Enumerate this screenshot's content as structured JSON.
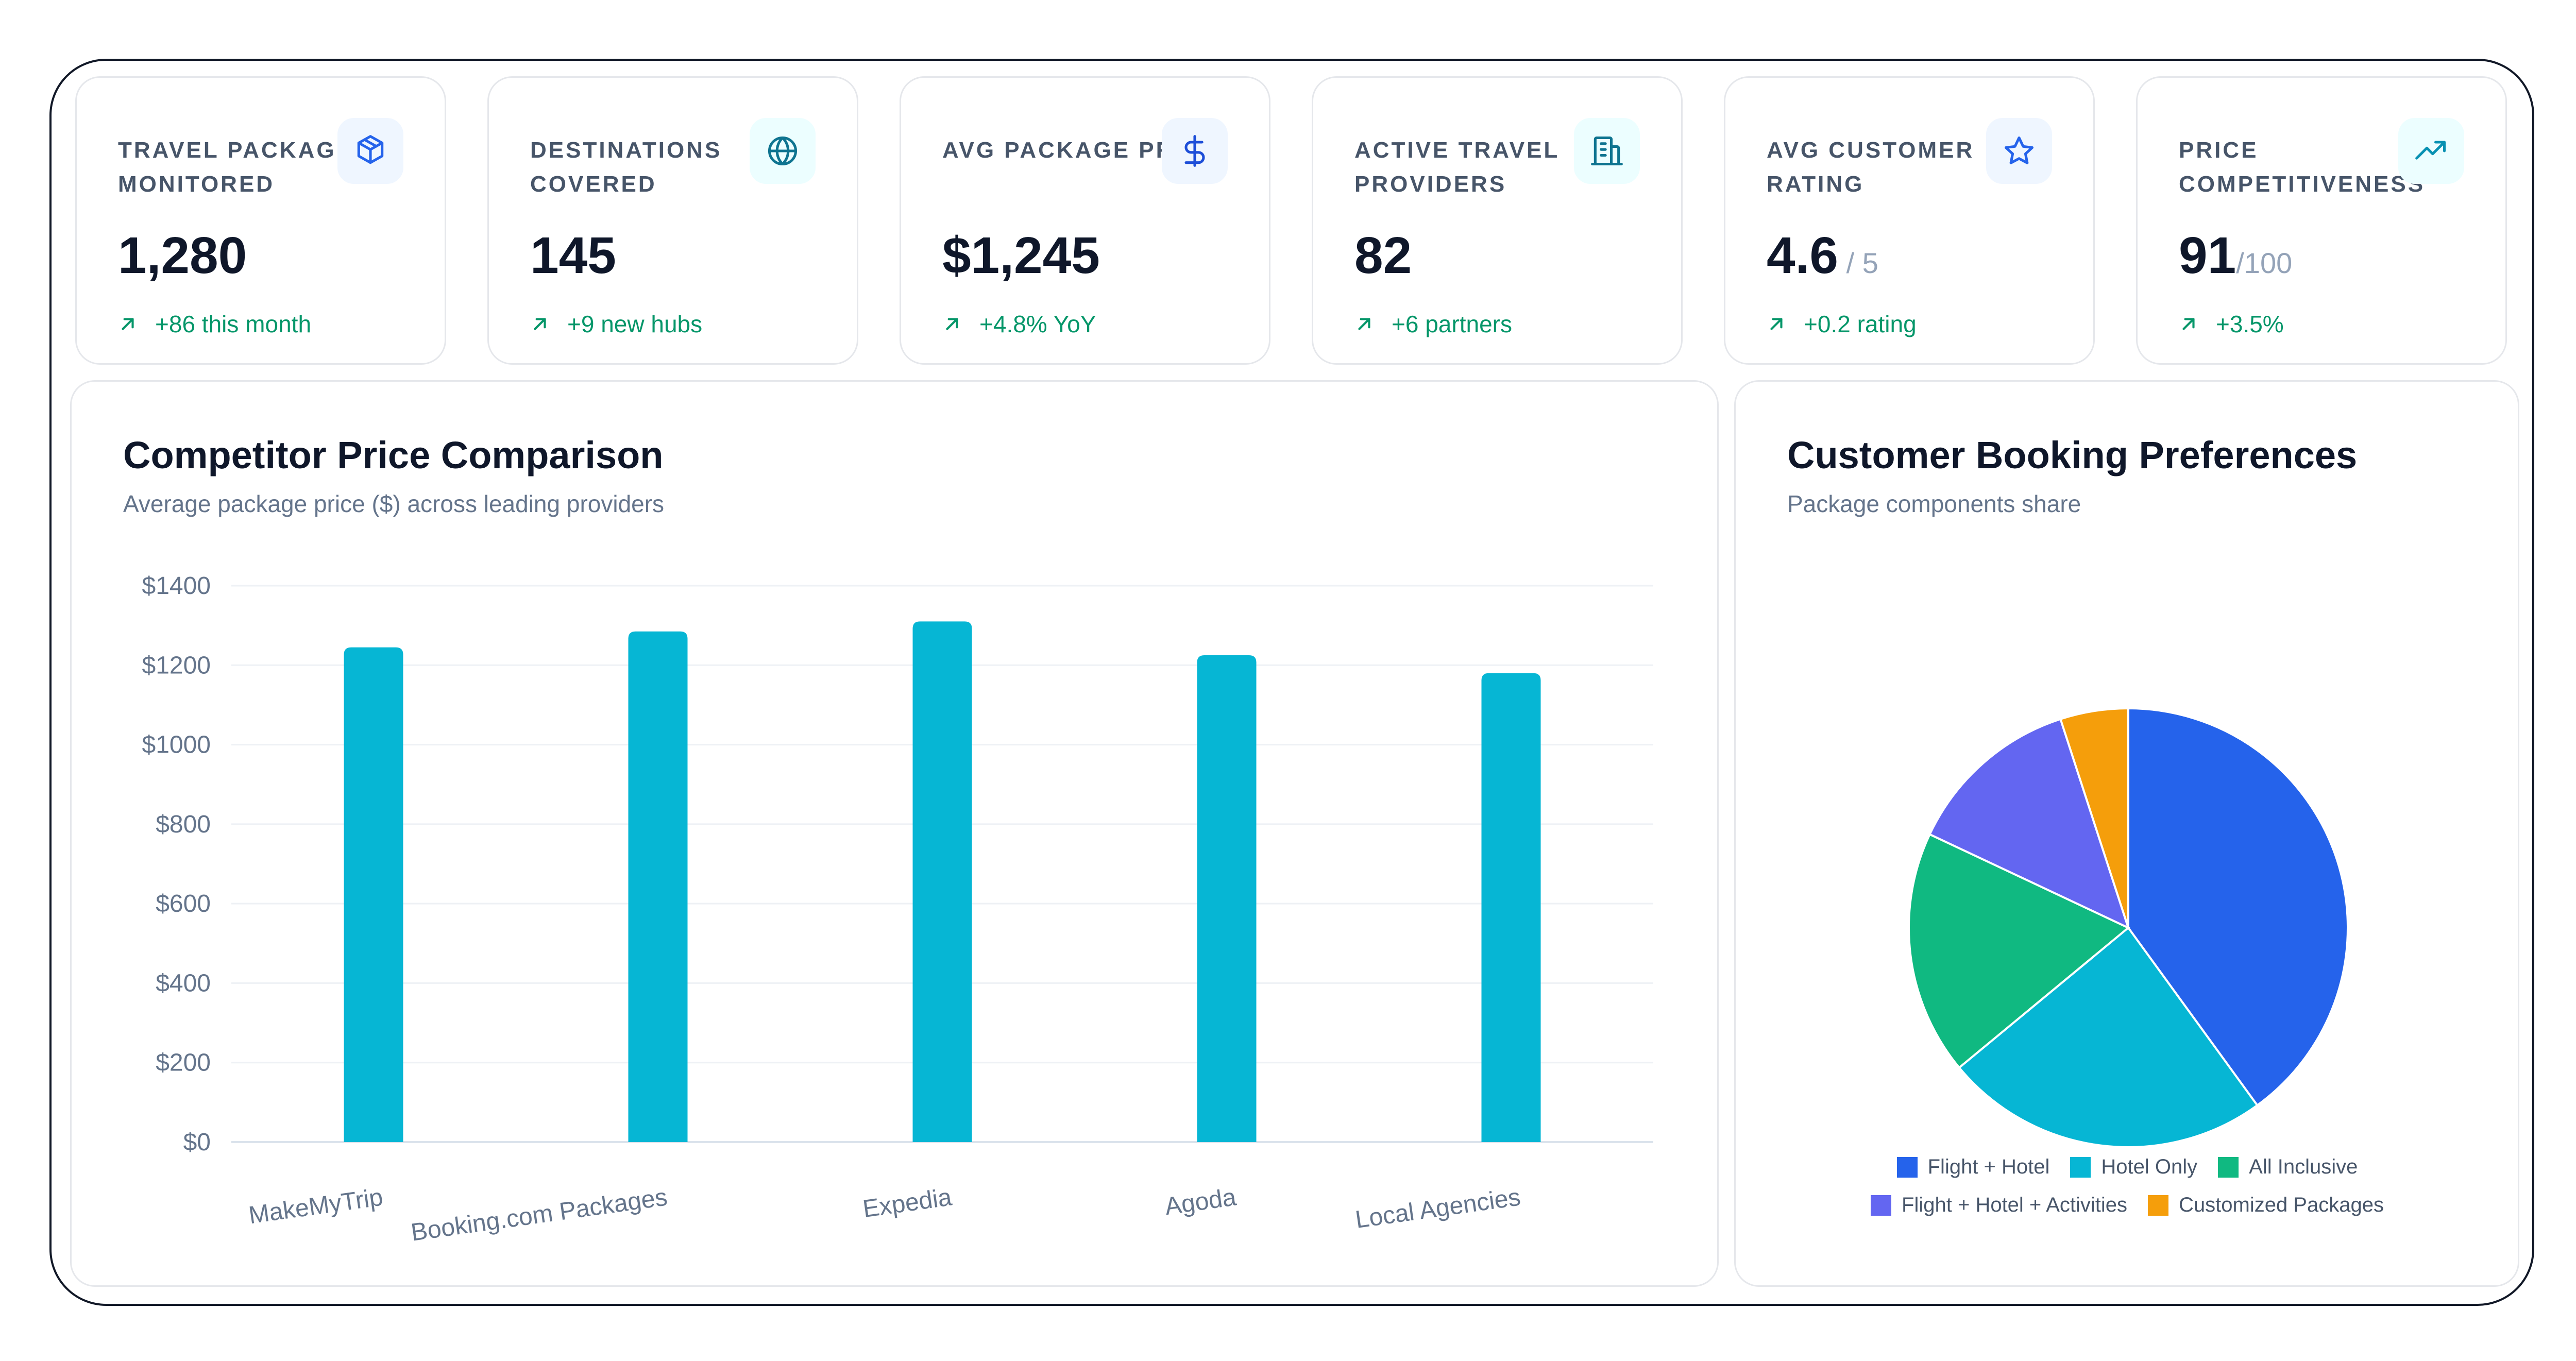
{
  "kpis": [
    {
      "label": "TRAVEL PACKAGES MONITORED",
      "value": "1,280",
      "suffix": "",
      "delta": "+86 this month",
      "icon": "package-icon",
      "icon_color": "#2563eb",
      "icon_bg": "#eff6ff"
    },
    {
      "label": "DESTINATIONS COVERED",
      "value": "145",
      "suffix": "",
      "delta": "+9 new hubs",
      "icon": "globe-icon",
      "icon_color": "#0e7490",
      "icon_bg": "#ecfeff"
    },
    {
      "label": "AVG PACKAGE PRICE",
      "value": "$1,245",
      "suffix": "",
      "delta": "+4.8% YoY",
      "icon": "dollar-icon",
      "icon_color": "#1d4ed8",
      "icon_bg": "#eff6ff"
    },
    {
      "label": "ACTIVE TRAVEL PROVIDERS",
      "value": "82",
      "suffix": "",
      "delta": "+6 partners",
      "icon": "building-icon",
      "icon_color": "#0e7490",
      "icon_bg": "#ecfeff"
    },
    {
      "label": "AVG CUSTOMER RATING",
      "value": "4.6",
      "suffix": " / 5",
      "delta": "+0.2 rating",
      "icon": "star-icon",
      "icon_color": "#2563eb",
      "icon_bg": "#eff6ff"
    },
    {
      "label": "PRICE COMPETITIVENESS",
      "value": "91",
      "suffix": "/100",
      "delta": "+3.5%",
      "icon": "trending-up-icon",
      "icon_color": "#0891b2",
      "icon_bg": "#ecfeff"
    }
  ],
  "price_panel": {
    "title": "Competitor Price Comparison",
    "subtitle": "Average package price ($) across leading providers"
  },
  "prefs_panel": {
    "title": "Customer Booking Preferences",
    "subtitle": "Package components share"
  },
  "colors": {
    "bar": "#06b6d4",
    "positive": "#059669",
    "grid": "#eef1f5",
    "axis": "#dbe3ec",
    "tick": "#64748b"
  },
  "chart_data": [
    {
      "type": "bar",
      "title": "Competitor Price Comparison",
      "subtitle": "Average package price ($) across leading providers",
      "categories": [
        "MakeMyTrip",
        "Booking.com Packages",
        "Expedia",
        "Agoda",
        "Local Agencies"
      ],
      "values": [
        1245,
        1285,
        1310,
        1225,
        1180
      ],
      "ylim": [
        0,
        1400
      ],
      "yticks": [
        0,
        200,
        400,
        600,
        800,
        1000,
        1200,
        1400
      ],
      "ytick_labels": [
        "$0",
        "$200",
        "$400",
        "$600",
        "$800",
        "$1000",
        "$1200",
        "$1400"
      ],
      "grid": true,
      "legend": "none"
    },
    {
      "type": "pie",
      "title": "Customer Booking Preferences",
      "subtitle": "Package components share",
      "labels": [
        "Flight + Hotel",
        "Hotel Only",
        "All Inclusive",
        "Flight + Hotel + Activities",
        "Customized Packages"
      ],
      "values": [
        40,
        24,
        18,
        13,
        5
      ],
      "colors": [
        "#2563eb",
        "#06b6d4",
        "#10b981",
        "#6366f1",
        "#f59e0b"
      ],
      "legend": "bottom"
    }
  ]
}
